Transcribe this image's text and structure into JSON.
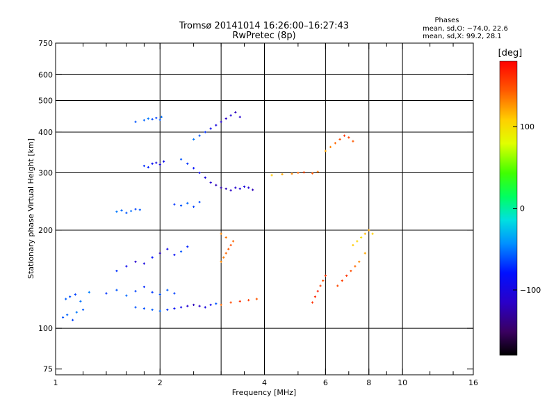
{
  "header": {
    "title": "Tromsø 20141014 16:26:00–16:27:43",
    "subtitle": "RwPretec (8p)",
    "stats_heading": "Phases",
    "stats_o": "mean, sd,O: −74.0, 22.6",
    "stats_x": "mean, sd,X:  99.2, 28.1"
  },
  "chart_data": {
    "type": "scatter",
    "title": "Tromsø 20141014 16:26:00–16:27:43",
    "subtitle": "RwPretec (8p)",
    "xlabel": "Frequency [MHz]",
    "ylabel": "Stationary phase Virtual Height [km]",
    "xscale": "log",
    "yscale": "log",
    "xlim": [
      1,
      16
    ],
    "ylim": [
      72,
      750
    ],
    "x_ticks": [
      1,
      2,
      4,
      6,
      8,
      10,
      16
    ],
    "x_tick_labels": [
      "1",
      "2",
      "4",
      "6",
      "8",
      "10",
      "16"
    ],
    "x_minor_ticks": [
      1.2,
      1.4,
      1.6,
      1.8,
      2.5,
      3,
      3.5,
      5,
      7,
      9,
      12,
      14
    ],
    "y_ticks": [
      75,
      100,
      200,
      300,
      400,
      500,
      600,
      750
    ],
    "y_tick_labels": [
      "75",
      "100",
      "200",
      "300",
      "400",
      "500",
      "600",
      "750"
    ],
    "grid": true,
    "grid_x": [
      2,
      3,
      4,
      6,
      8,
      10
    ],
    "grid_y": [
      100,
      200,
      300,
      400,
      500,
      600
    ],
    "colorbar": {
      "label": "[deg]",
      "range": [
        -180,
        180
      ],
      "ticks": [
        100,
        0,
        -100
      ],
      "tick_labels": [
        "100",
        "0",
        "−100"
      ],
      "colormap": "rainbow"
    },
    "series": [
      {
        "x": [
          1.05,
          1.08,
          1.12,
          1.15,
          1.2,
          1.1,
          1.07,
          1.14,
          1.18,
          1.25
        ],
        "y": [
          108,
          110,
          106,
          112,
          114,
          125,
          123,
          127,
          121,
          129
        ],
        "phase": [
          -60,
          -55,
          -65,
          -50,
          -58,
          -62,
          -57,
          -66,
          -52,
          -48
        ]
      },
      {
        "x": [
          1.4,
          1.5,
          1.6,
          1.7,
          1.8,
          1.9,
          2.0,
          2.1,
          2.2
        ],
        "y": [
          128,
          131,
          126,
          130,
          134,
          129,
          127,
          131,
          128
        ],
        "phase": [
          -70,
          -60,
          -55,
          -65,
          -72,
          -68,
          -60,
          -58,
          -66
        ]
      },
      {
        "x": [
          1.7,
          1.8,
          1.9,
          2.0,
          2.1,
          2.2,
          2.3,
          2.4,
          2.5,
          2.6,
          2.7,
          2.8,
          2.9,
          3.0,
          3.2,
          3.4,
          3.6,
          3.8
        ],
        "y": [
          116,
          115,
          114,
          113,
          114,
          115,
          116,
          117,
          118,
          117,
          116,
          118,
          119,
          118,
          120,
          121,
          122,
          123
        ],
        "phase": [
          -60,
          -62,
          -58,
          -55,
          -70,
          -85,
          -95,
          -110,
          -120,
          -115,
          -100,
          -90,
          -60,
          140,
          150,
          160,
          155,
          145
        ]
      },
      {
        "x": [
          1.5,
          1.6,
          1.7,
          1.8,
          1.9,
          2.0,
          2.1,
          2.2,
          2.3,
          2.4
        ],
        "y": [
          150,
          155,
          160,
          158,
          165,
          170,
          175,
          168,
          172,
          178
        ],
        "phase": [
          -70,
          -90,
          -110,
          -100,
          -80,
          -120,
          -95,
          -85,
          -60,
          -75
        ]
      },
      {
        "x": [
          1.5,
          1.55,
          1.6,
          1.65,
          1.7,
          1.75,
          2.2,
          2.3,
          2.4,
          2.5,
          2.6
        ],
        "y": [
          228,
          230,
          226,
          229,
          232,
          231,
          240,
          238,
          242,
          236,
          244
        ],
        "phase": [
          -50,
          -55,
          -60,
          -52,
          -65,
          -58,
          -70,
          -60,
          -55,
          -65,
          -62
        ]
      },
      {
        "x": [
          1.8,
          1.9,
          1.95,
          2.0,
          2.05,
          1.85
        ],
        "y": [
          315,
          320,
          322,
          318,
          325,
          312
        ],
        "phase": [
          -70,
          -85,
          -95,
          -100,
          -90,
          -75
        ]
      },
      {
        "x": [
          1.7,
          1.8,
          1.85,
          1.9,
          1.95,
          2.0,
          2.02
        ],
        "y": [
          430,
          435,
          440,
          438,
          442,
          436,
          445
        ],
        "phase": [
          -60,
          -55,
          -50,
          -62,
          -65,
          -58,
          -52
        ]
      },
      {
        "x": [
          2.3,
          2.4,
          2.5,
          2.6,
          2.7,
          2.8,
          2.9,
          3.0,
          3.1,
          3.2,
          3.3,
          3.4,
          3.5,
          3.6,
          3.7
        ],
        "y": [
          330,
          320,
          310,
          300,
          290,
          280,
          275,
          270,
          268,
          265,
          270,
          268,
          272,
          270,
          266
        ],
        "phase": [
          -60,
          -70,
          -80,
          -90,
          -100,
          -110,
          -120,
          -125,
          -120,
          -115,
          -110,
          -105,
          -100,
          -110,
          -120
        ]
      },
      {
        "x": [
          2.5,
          2.6,
          2.7,
          2.8,
          2.9,
          3.0,
          3.1,
          3.2,
          3.3,
          3.4
        ],
        "y": [
          380,
          390,
          400,
          410,
          420,
          430,
          440,
          450,
          460,
          445
        ],
        "phase": [
          -50,
          -60,
          -70,
          -90,
          -100,
          -110,
          -115,
          -105,
          -120,
          -110
        ]
      },
      {
        "x": [
          3.0,
          3.05,
          3.1,
          3.15,
          3.2,
          3.25,
          3.1,
          3.0
        ],
        "y": [
          160,
          165,
          170,
          175,
          180,
          185,
          190,
          195
        ],
        "phase": [
          130,
          135,
          140,
          145,
          150,
          140,
          135,
          130
        ]
      },
      {
        "x": [
          4.2,
          4.5,
          4.8,
          5.0,
          5.2,
          5.5,
          5.7
        ],
        "y": [
          295,
          297,
          298,
          300,
          301,
          299,
          302
        ],
        "phase": [
          110,
          120,
          130,
          140,
          150,
          145,
          135
        ]
      },
      {
        "x": [
          6.0,
          6.2,
          6.4,
          6.6,
          6.8,
          7.0,
          7.2
        ],
        "y": [
          350,
          360,
          370,
          380,
          390,
          385,
          375
        ],
        "phase": [
          120,
          130,
          140,
          150,
          160,
          155,
          145
        ]
      },
      {
        "x": [
          5.5,
          5.6,
          5.7,
          5.8,
          5.9,
          6.0
        ],
        "y": [
          120,
          125,
          130,
          135,
          140,
          145
        ],
        "phase": [
          160,
          165,
          170,
          155,
          150,
          158
        ]
      },
      {
        "x": [
          6.5,
          6.7,
          6.9,
          7.1,
          7.3,
          7.5,
          7.8
        ],
        "y": [
          135,
          140,
          145,
          150,
          155,
          160,
          170
        ],
        "phase": [
          150,
          155,
          160,
          150,
          140,
          130,
          120
        ]
      },
      {
        "x": [
          7.2,
          7.4,
          7.6,
          7.8,
          8.0,
          8.2
        ],
        "y": [
          180,
          185,
          190,
          195,
          200,
          195
        ],
        "phase": [
          110,
          105,
          100,
          115,
          120,
          108
        ]
      }
    ]
  }
}
